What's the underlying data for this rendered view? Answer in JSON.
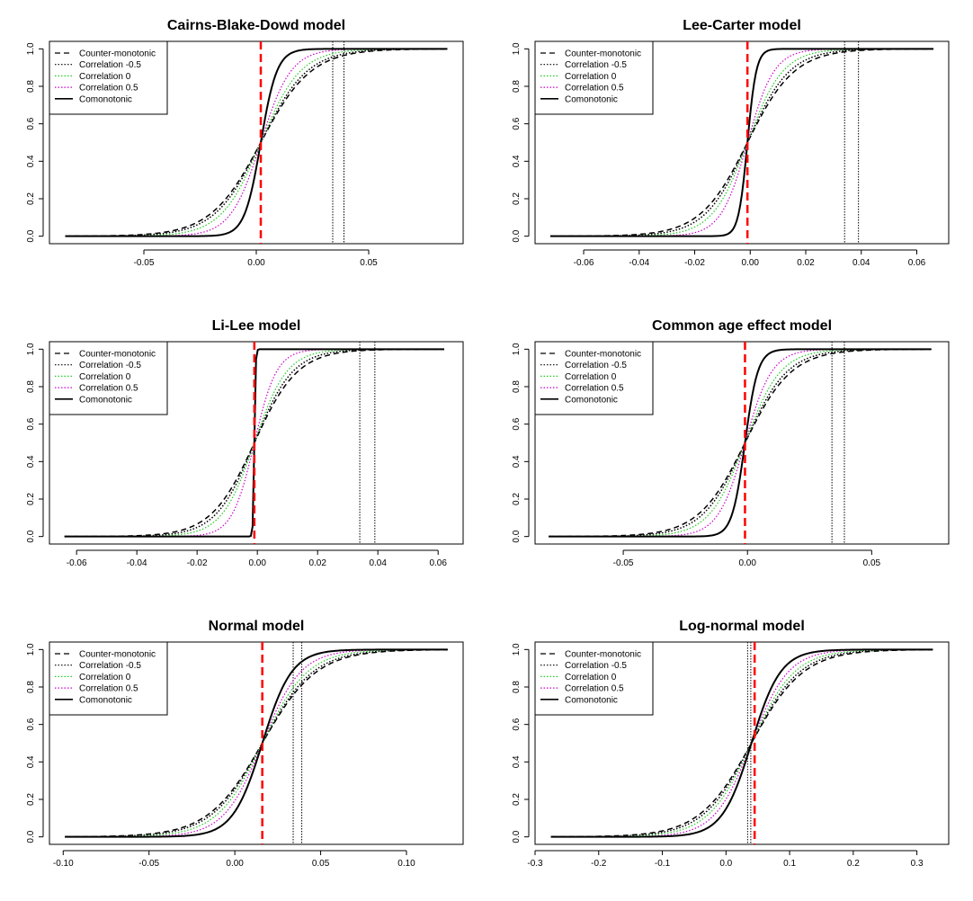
{
  "series_styles": {
    "counter": {
      "color": "#000000",
      "dash": "6,4",
      "width": 1.5
    },
    "corr_neg": {
      "color": "#000000",
      "dash": "1.5,2",
      "width": 1.5
    },
    "corr_zero": {
      "color": "#22cc22",
      "dash": "1.5,2",
      "width": 1.2
    },
    "corr_pos": {
      "color": "#cc00cc",
      "dash": "1.5,2",
      "width": 1.2
    },
    "como": {
      "color": "#000000",
      "dash": "",
      "width": 2
    },
    "red_line": {
      "color": "#ff0000"
    },
    "black_vline": {
      "color": "#000000"
    }
  },
  "chart_data": [
    {
      "type": "line",
      "title": "Cairns-Blake-Dowd model",
      "xlabel": "",
      "ylabel": "",
      "xlim": [
        -0.092,
        0.092
      ],
      "ylim": [
        -0.04,
        1.04
      ],
      "xticks": [
        "-0.05",
        "0.00",
        "0.05"
      ],
      "xtick_values": [
        -0.05,
        0.0,
        0.05
      ],
      "yticks": [
        "0.0",
        "0.2",
        "0.4",
        "0.6",
        "0.8",
        "1.0"
      ],
      "ytick_values": [
        0,
        0.2,
        0.4,
        0.6,
        0.8,
        1.0
      ],
      "x_range": [
        -0.085,
        0.085
      ],
      "center": 0.002,
      "scales": {
        "counter": 0.0112,
        "corr_neg": 0.0103,
        "corr_zero": 0.0088,
        "corr_pos": 0.0067,
        "como": 0.0036
      },
      "red_vline": 0.002,
      "black_vlines": [
        0.034,
        0.039
      ],
      "legend": [
        "Counter-monotonic",
        "Correlation -0.5",
        "Correlation 0",
        "Correlation 0.5",
        "Comonotonic"
      ]
    },
    {
      "type": "line",
      "title": "Lee-Carter model",
      "xlabel": "",
      "ylabel": "",
      "xlim": [
        -0.0775,
        0.0715
      ],
      "ylim": [
        -0.04,
        1.04
      ],
      "xticks": [
        "-0.06",
        "-0.04",
        "-0.02",
        "0.00",
        "0.02",
        "0.04",
        "0.06"
      ],
      "xtick_values": [
        -0.06,
        -0.04,
        -0.02,
        0.0,
        0.02,
        0.04,
        0.06
      ],
      "yticks": [
        "0.0",
        "0.2",
        "0.4",
        "0.6",
        "0.8",
        "1.0"
      ],
      "ytick_values": [
        0,
        0.2,
        0.4,
        0.6,
        0.8,
        1.0
      ],
      "x_range": [
        -0.072,
        0.066
      ],
      "center": -0.001,
      "scales": {
        "counter": 0.0085,
        "corr_neg": 0.0076,
        "corr_zero": 0.0064,
        "corr_pos": 0.0048,
        "como": 0.0016
      },
      "red_vline": -0.001,
      "black_vlines": [
        0.034,
        0.039
      ],
      "legend": [
        "Counter-monotonic",
        "Correlation -0.5",
        "Correlation 0",
        "Correlation 0.5",
        "Comonotonic"
      ]
    },
    {
      "type": "line",
      "title": "Li-Lee model",
      "xlabel": "",
      "ylabel": "",
      "xlim": [
        -0.069,
        0.0683
      ],
      "ylim": [
        -0.04,
        1.04
      ],
      "xticks": [
        "-0.06",
        "-0.04",
        "-0.02",
        "0.00",
        "0.02",
        "0.04",
        "0.06"
      ],
      "xtick_values": [
        -0.06,
        -0.04,
        -0.02,
        0.0,
        0.02,
        0.04,
        0.06
      ],
      "yticks": [
        "0.0",
        "0.2",
        "0.4",
        "0.6",
        "0.8",
        "1.0"
      ],
      "ytick_values": [
        0,
        0.2,
        0.4,
        0.6,
        0.8,
        1.0
      ],
      "x_range": [
        -0.064,
        0.062
      ],
      "center": -0.001,
      "scales": {
        "counter": 0.0072,
        "corr_neg": 0.0064,
        "corr_zero": 0.0054,
        "corr_pos": 0.0037,
        "como": 0.0002
      },
      "red_vline": -0.001,
      "black_vlines": [
        0.034,
        0.039
      ],
      "legend": [
        "Counter-monotonic",
        "Correlation -0.5",
        "Correlation 0",
        "Correlation 0.5",
        "Comonotonic"
      ]
    },
    {
      "type": "line",
      "title": "Common age effect model",
      "xlabel": "",
      "ylabel": "",
      "xlim": [
        -0.0855,
        0.081
      ],
      "ylim": [
        -0.04,
        1.04
      ],
      "xticks": [
        "-0.05",
        "0.00",
        "0.05"
      ],
      "xtick_values": [
        -0.05,
        0.0,
        0.05
      ],
      "yticks": [
        "0.0",
        "0.2",
        "0.4",
        "0.6",
        "0.8",
        "1.0"
      ],
      "ytick_values": [
        0,
        0.2,
        0.4,
        0.6,
        0.8,
        1.0
      ],
      "x_range": [
        -0.08,
        0.074
      ],
      "center": -0.001,
      "scales": {
        "counter": 0.0094,
        "corr_neg": 0.0085,
        "corr_zero": 0.0072,
        "corr_pos": 0.0054,
        "como": 0.0026
      },
      "red_vline": -0.001,
      "black_vlines": [
        0.034,
        0.039
      ],
      "legend": [
        "Counter-monotonic",
        "Correlation -0.5",
        "Correlation 0",
        "Correlation 0.5",
        "Comonotonic"
      ]
    },
    {
      "type": "line",
      "title": "Normal model",
      "xlabel": "",
      "ylabel": "",
      "xlim": [
        -0.108,
        0.133
      ],
      "ylim": [
        -0.04,
        1.04
      ],
      "xticks": [
        "-0.10",
        "-0.05",
        "0.00",
        "0.05",
        "0.10"
      ],
      "xtick_values": [
        -0.1,
        -0.05,
        0.0,
        0.05,
        0.1
      ],
      "yticks": [
        "0.0",
        "0.2",
        "0.4",
        "0.6",
        "0.8",
        "1.0"
      ],
      "ytick_values": [
        0,
        0.2,
        0.4,
        0.6,
        0.8,
        1.0
      ],
      "x_range": [
        -0.099,
        0.124
      ],
      "center": 0.016,
      "scales": {
        "counter": 0.0158,
        "corr_neg": 0.0148,
        "corr_zero": 0.0132,
        "corr_pos": 0.0112,
        "como": 0.0086
      },
      "red_vline": 0.016,
      "black_vlines": [
        0.034,
        0.039
      ],
      "legend": [
        "Counter-monotonic",
        "Correlation -0.5",
        "Correlation 0",
        "Correlation 0.5",
        "Comonotonic"
      ]
    },
    {
      "type": "line",
      "title": "Log-normal model",
      "xlabel": "",
      "ylabel": "",
      "xlim": [
        -0.3,
        0.35
      ],
      "ylim": [
        -0.04,
        1.04
      ],
      "xticks": [
        "-0.3",
        "-0.2",
        "-0.1",
        "0.0",
        "0.1",
        "0.2",
        "0.3"
      ],
      "xtick_values": [
        -0.3,
        -0.2,
        -0.1,
        0.0,
        0.1,
        0.2,
        0.3
      ],
      "yticks": [
        "0.0",
        "0.2",
        "0.4",
        "0.6",
        "0.8",
        "1.0"
      ],
      "ytick_values": [
        0,
        0.2,
        0.4,
        0.6,
        0.8,
        1.0
      ],
      "x_range": [
        -0.275,
        0.325
      ],
      "center": 0.04,
      "scales": {
        "counter": 0.041,
        "corr_neg": 0.038,
        "corr_zero": 0.034,
        "corr_pos": 0.029,
        "como": 0.023
      },
      "red_vline": 0.045,
      "black_vlines": [
        0.034,
        0.039
      ],
      "legend": [
        "Counter-monotonic",
        "Correlation -0.5",
        "Correlation 0",
        "Correlation 0.5",
        "Comonotonic"
      ]
    }
  ]
}
